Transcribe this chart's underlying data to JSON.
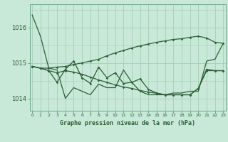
{
  "title": "Graphe pression niveau de la mer (hPa)",
  "bg_color": "#c8e8d8",
  "grid_color": "#a8cdb8",
  "line_color": "#2a6035",
  "hours": [
    0,
    1,
    2,
    3,
    4,
    5,
    6,
    7,
    8,
    9,
    10,
    11,
    12,
    13,
    14,
    15,
    16,
    17,
    18,
    19,
    20,
    21,
    22,
    23
  ],
  "series": [
    [
      1016.35,
      1015.75,
      1014.85,
      1014.8,
      1014.0,
      1014.3,
      1014.2,
      1014.1,
      1014.4,
      1014.3,
      1014.3,
      1014.8,
      1014.45,
      1014.2,
      1014.1,
      1014.1,
      1014.1,
      1014.15,
      1014.15,
      1014.2,
      1014.2,
      1015.05,
      1015.1,
      1015.55
    ],
    [
      1014.9,
      1014.85,
      1014.85,
      1014.88,
      1014.9,
      1014.95,
      1015.0,
      1015.05,
      1015.1,
      1015.2,
      1015.28,
      1015.35,
      1015.42,
      1015.48,
      1015.53,
      1015.58,
      1015.62,
      1015.66,
      1015.68,
      1015.72,
      1015.75,
      1015.7,
      1015.58,
      1015.55
    ],
    [
      1014.9,
      1014.85,
      1014.78,
      1014.72,
      1014.78,
      1014.74,
      1014.68,
      1014.6,
      1014.52,
      1014.45,
      1014.38,
      1014.32,
      1014.28,
      1014.22,
      1014.18,
      1014.14,
      1014.1,
      1014.1,
      1014.1,
      1014.1,
      1014.28,
      1014.78,
      1014.78,
      1014.78
    ],
    [
      1014.9,
      1014.85,
      1014.78,
      1014.45,
      1014.82,
      1015.05,
      1014.58,
      1014.42,
      1014.88,
      1014.58,
      1014.72,
      1014.42,
      1014.45,
      1014.55,
      1014.25,
      1014.15,
      1014.1,
      1014.1,
      1014.1,
      1014.1,
      1014.28,
      1014.82,
      1014.78,
      1014.78
    ]
  ],
  "yticks": [
    1014,
    1015,
    1016
  ],
  "ylim": [
    1013.65,
    1016.65
  ],
  "xlim": [
    -0.3,
    23.3
  ]
}
